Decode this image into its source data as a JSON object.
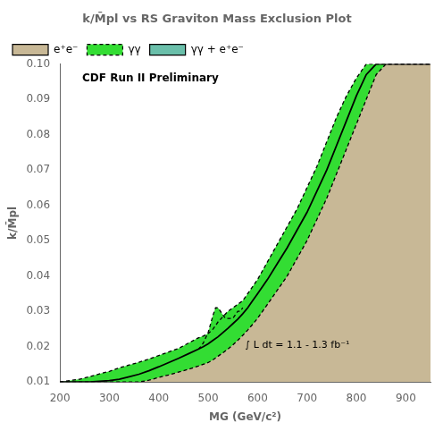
{
  "chart_data": {
    "type": "area",
    "title": "k/M̄pl vs RS Graviton Mass Exclusion Plot",
    "xlabel": "MG (GeV/c²)",
    "ylabel": "k/M̄pl",
    "xlim": [
      200,
      950
    ],
    "ylim": [
      0.01,
      0.1
    ],
    "xticks": [
      200,
      300,
      400,
      500,
      600,
      700,
      800,
      900
    ],
    "yticks": [
      0.01,
      0.02,
      0.03,
      0.04,
      0.05,
      0.06,
      0.07,
      0.08,
      0.09,
      {
        "value": 0.1,
        "label": "0.10"
      }
    ],
    "grid": false,
    "legend": "upper left",
    "annotations": [
      "CDF Run II Preliminary",
      "∫ L dt = 1.1 - 1.3 fb⁻¹"
    ],
    "series": [
      {
        "name": "e⁺e⁻",
        "color": "#c8b896",
        "line_style": "solid",
        "x": [
          200,
          240,
          260,
          280,
          300,
          320,
          340,
          360,
          380,
          400,
          420,
          440,
          460,
          480,
          490,
          500,
          510,
          520,
          530,
          540,
          550,
          560,
          570,
          580,
          590,
          600,
          620,
          640,
          660,
          680,
          700,
          720,
          740,
          760,
          780,
          800,
          820,
          840,
          860,
          880,
          900,
          920,
          940,
          950
        ],
        "values": [
          0.01,
          0.01,
          0.01,
          0.0102,
          0.0104,
          0.0108,
          0.0115,
          0.0122,
          0.0132,
          0.0143,
          0.0155,
          0.0167,
          0.018,
          0.0193,
          0.02,
          0.0208,
          0.0218,
          0.0228,
          0.024,
          0.0252,
          0.0265,
          0.0278,
          0.0293,
          0.031,
          0.033,
          0.035,
          0.039,
          0.0435,
          0.048,
          0.053,
          0.058,
          0.064,
          0.07,
          0.077,
          0.084,
          0.091,
          0.097,
          0.1,
          0.1,
          0.1,
          0.1,
          0.1,
          0.1,
          0.1
        ]
      },
      {
        "name": "γγ",
        "color": "#33dd33",
        "line_style": "dashed",
        "x": [
          200,
          240,
          260,
          280,
          300,
          320,
          340,
          360,
          380,
          400,
          420,
          440,
          460,
          480,
          490,
          500,
          510,
          520,
          530,
          540,
          550,
          560,
          570,
          580,
          590,
          600,
          620,
          640,
          660,
          680,
          700,
          720,
          740,
          760,
          780,
          800,
          820,
          840,
          860,
          880,
          900,
          920,
          940,
          950
        ],
        "values": [
          0.01,
          0.0108,
          0.0115,
          0.0123,
          0.013,
          0.014,
          0.0148,
          0.0156,
          0.0165,
          0.0175,
          0.0185,
          0.0195,
          0.021,
          0.0225,
          0.023,
          0.0237,
          0.025,
          0.027,
          0.0285,
          0.03,
          0.031,
          0.032,
          0.033,
          0.035,
          0.037,
          0.039,
          0.044,
          0.049,
          0.054,
          0.059,
          0.065,
          0.071,
          0.078,
          0.085,
          0.091,
          0.096,
          0.1,
          0.1,
          0.1,
          0.1,
          0.1,
          0.1,
          0.1,
          0.1
        ],
        "lower": [
          0.01,
          0.01,
          0.01,
          0.01,
          0.01,
          0.01,
          0.01,
          0.01,
          0.0105,
          0.0113,
          0.012,
          0.0128,
          0.0136,
          0.0145,
          0.015,
          0.0155,
          0.0163,
          0.0173,
          0.0183,
          0.0193,
          0.0205,
          0.0218,
          0.0232,
          0.0247,
          0.0263,
          0.028,
          0.032,
          0.036,
          0.04,
          0.045,
          0.05,
          0.056,
          0.062,
          0.069,
          0.076,
          0.083,
          0.09,
          0.097,
          0.1,
          0.1,
          0.1,
          0.1,
          0.1,
          0.1
        ],
        "bump": {
          "x": [
            480,
            485,
            490,
            495,
            500,
            505,
            510,
            515,
            520,
            525,
            530,
            535,
            540,
            545,
            550,
            555,
            560,
            565,
            570
          ],
          "values": [
            0.0193,
            0.02,
            0.021,
            0.0225,
            0.024,
            0.0265,
            0.029,
            0.031,
            0.031,
            0.03,
            0.029,
            0.028,
            0.028,
            0.028,
            0.028,
            0.029,
            0.03,
            0.03,
            0.031
          ]
        }
      },
      {
        "name": "γγ + e⁺e⁻",
        "color": "#6abfaa"
      }
    ]
  }
}
